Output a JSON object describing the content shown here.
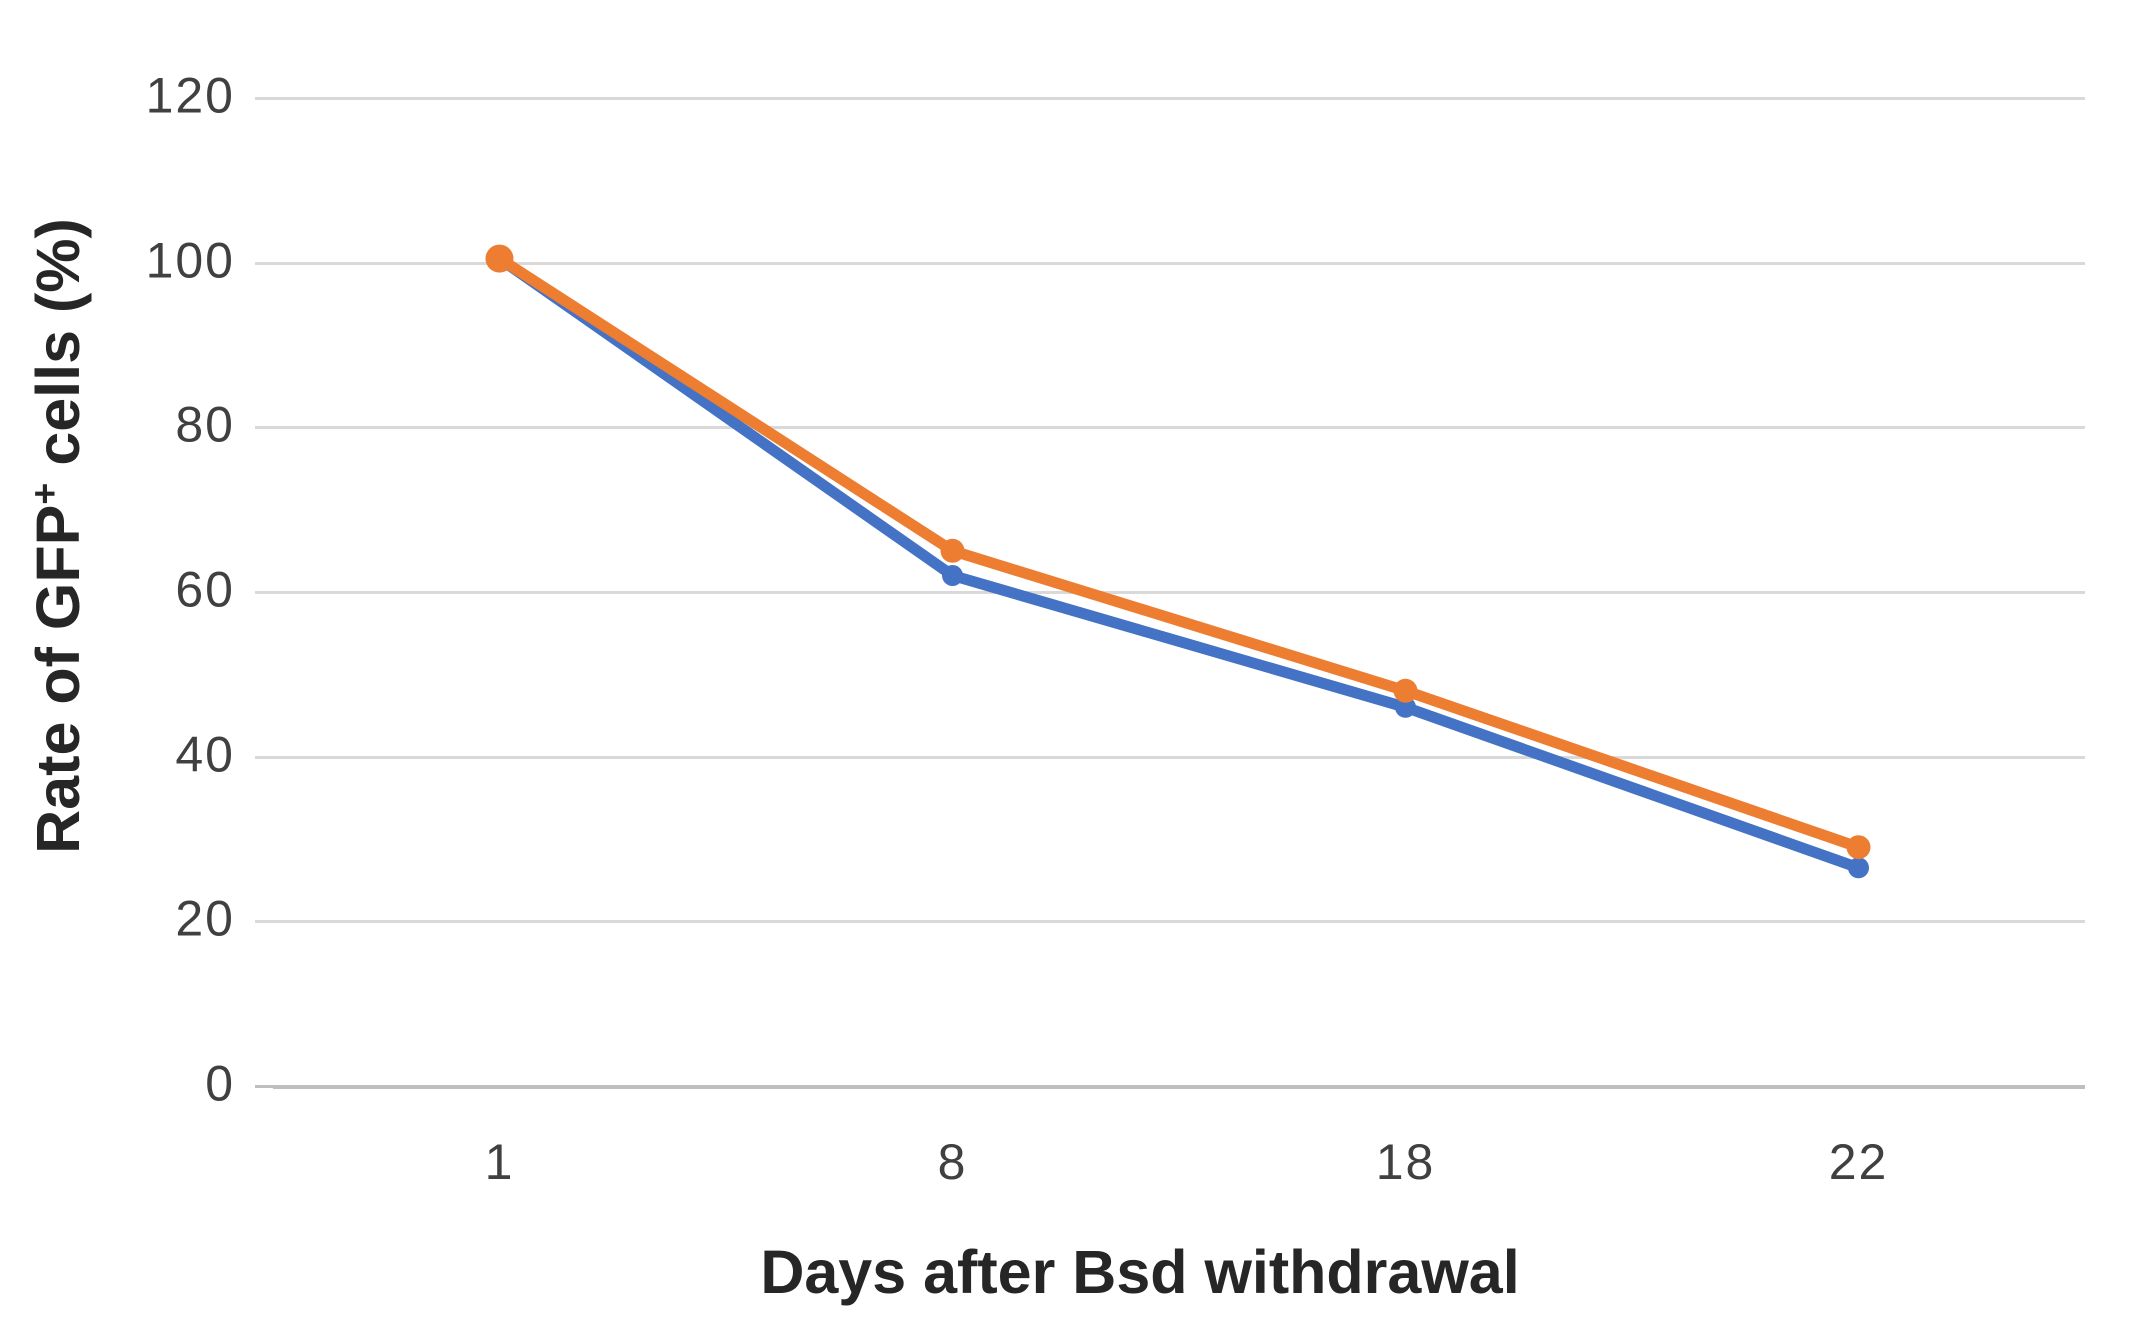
{
  "chart_data": {
    "type": "line",
    "categories": [
      "1",
      "8",
      "18",
      "22"
    ],
    "series": [
      {
        "name": "blue-series",
        "color": "#4472C4",
        "marker": "circle",
        "values": [
          100.5,
          62,
          46,
          26.5
        ]
      },
      {
        "name": "orange-series",
        "color": "#ED7D31",
        "marker": "circle",
        "values": [
          100.5,
          65,
          48,
          29
        ]
      }
    ],
    "title": "",
    "xlabel": "Days after Bsd withdrawal",
    "ylabel": "Rate of GFP⁺ cells (%)",
    "ylabel_parts": {
      "prefix": "Rate of GFP",
      "sup": "+",
      "suffix": " cells (%)"
    },
    "yticks": [
      0,
      20,
      40,
      60,
      80,
      100,
      120
    ],
    "ylim": [
      0,
      120
    ],
    "grid": true,
    "legend": "none",
    "colors": {
      "gridline": "#D9D9D9",
      "axis_line": "#BFBFBF",
      "tick_text": "#404040",
      "title_text": "#262626",
      "background": "#FFFFFF"
    }
  }
}
